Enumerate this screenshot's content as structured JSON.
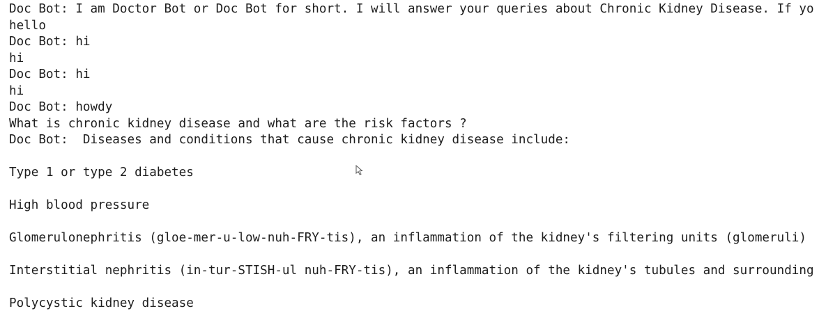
{
  "console": {
    "lines": [
      "Doc Bot: I am Doctor Bot or Doc Bot for short. I will answer your queries about Chronic Kidney Disease. If yo",
      "hello",
      "Doc Bot: hi",
      "hi",
      "Doc Bot: hi",
      "hi",
      "Doc Bot: howdy",
      "What is chronic kidney disease and what are the risk factors ?",
      "Doc Bot:  Diseases and conditions that cause chronic kidney disease include:",
      "Type 1 or type 2 diabetes",
      "High blood pressure",
      "Glomerulonephritis (gloe-mer-u-low-nuh-FRY-tis), an inflammation of the kidney's filtering units (glomeruli)",
      "Interstitial nephritis (in-tur-STISH-ul nuh-FRY-tis), an inflammation of the kidney's tubules and surrounding",
      "Polycystic kidney disease"
    ]
  }
}
